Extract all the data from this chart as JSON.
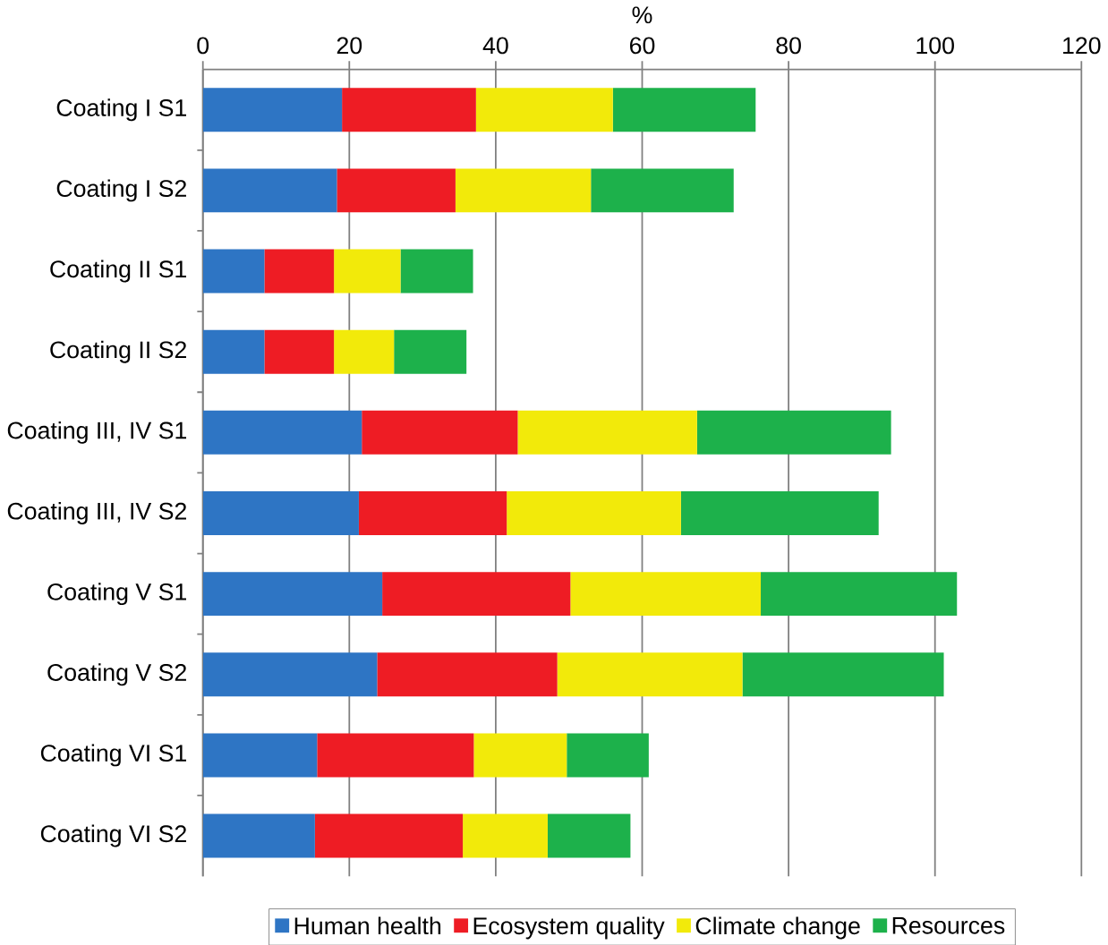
{
  "chart_data": {
    "type": "bar",
    "orientation": "horizontal",
    "stacked": true,
    "xlabel": "%",
    "categories": [
      "Coating I S1",
      "Coating I S2",
      "Coating II S1",
      "Coating II S2",
      "Coating III, IV S1",
      "Coating III, IV S2",
      "Coating V S1",
      "Coating V S2",
      "Coating VI S1",
      "Coating VI S2"
    ],
    "series": [
      {
        "name": "Human health",
        "color": "#2e75c4",
        "values": [
          19.0,
          18.3,
          8.4,
          8.4,
          21.7,
          21.3,
          24.5,
          23.8,
          15.6,
          15.3
        ]
      },
      {
        "name": "Ecosystem quality",
        "color": "#ee1c24",
        "values": [
          18.3,
          16.2,
          9.5,
          9.5,
          21.3,
          20.2,
          25.7,
          24.6,
          21.4,
          20.2
        ]
      },
      {
        "name": "Climate change",
        "color": "#f2ea0a",
        "values": [
          18.7,
          18.5,
          9.1,
          8.2,
          24.5,
          23.8,
          26.0,
          25.3,
          12.7,
          11.6
        ]
      },
      {
        "name": "Resources",
        "color": "#1db14b",
        "values": [
          19.5,
          19.5,
          9.9,
          9.9,
          26.5,
          27.0,
          26.8,
          27.5,
          11.2,
          11.3
        ]
      }
    ],
    "xlim": [
      0,
      120
    ],
    "xticks": [
      0,
      20,
      40,
      60,
      80,
      100,
      120
    ],
    "grid": "x",
    "legend": "bottom"
  }
}
